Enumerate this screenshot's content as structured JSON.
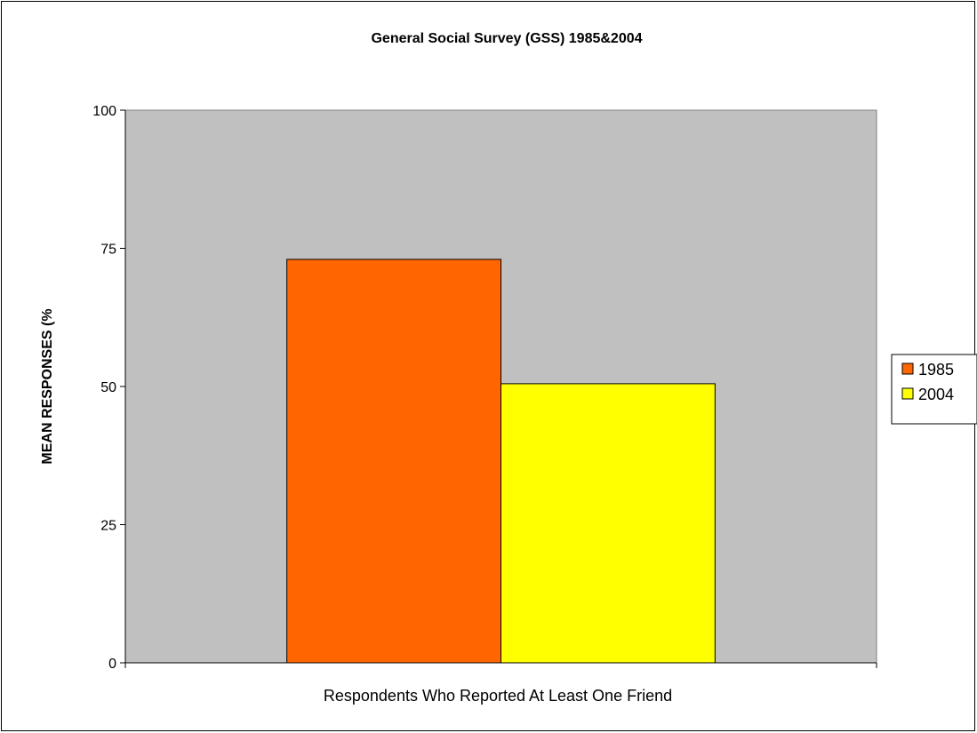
{
  "chart_data": {
    "type": "bar",
    "title": "General Social Survey (GSS) 1985&2004",
    "xlabel": "",
    "ylabel": "MEAN RESPONSES (%",
    "categories": [
      "Respondents Who Reported At Least One Friend"
    ],
    "series": [
      {
        "name": "1985",
        "values": [
          73
        ],
        "color": "#FF6600"
      },
      {
        "name": "2004",
        "values": [
          50.5
        ],
        "color": "#FFFF00"
      }
    ],
    "ylim": [
      0,
      100
    ],
    "yticks": [
      0,
      25,
      50,
      75,
      100
    ],
    "grid": false,
    "plot_background": "#C0C0C0",
    "legend_position": "right"
  }
}
